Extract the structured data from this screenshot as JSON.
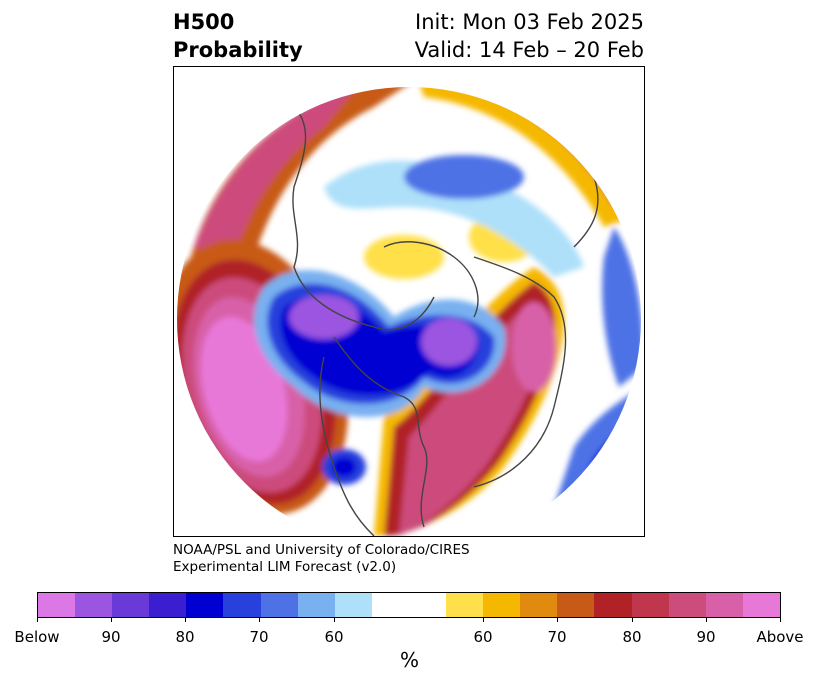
{
  "header": {
    "title_line1": "H500",
    "title_line2": "Probability",
    "init": "Init: Mon 03 Feb 2025",
    "valid": "Valid: 14 Feb – 20 Feb"
  },
  "credit": {
    "line1": "NOAA/PSL and University of Colorado/CIRES",
    "line2": "Experimental LIM Forecast (v2.0)"
  },
  "colorbar": {
    "unit": "%",
    "tick_labels": [
      "Below",
      "90",
      "80",
      "70",
      "60",
      "60",
      "70",
      "80",
      "90",
      "Above"
    ],
    "colors": {
      "below_100": "#dc78e6",
      "below_90": "#9b55e0",
      "below_85": "#6a3ad8",
      "below_80": "#3a1ed0",
      "below_75": "#0000d2",
      "below_70": "#2840dc",
      "below_65": "#4e72e6",
      "below_60": "#78b0f0",
      "below_55": "#aee0fa",
      "neutral": "#ffffff",
      "above_55": "#ffe04a",
      "above_60": "#f5b800",
      "above_65": "#e08a10",
      "above_70": "#c85a18",
      "above_75": "#b02226",
      "above_80": "#c0364c",
      "above_85": "#cc4c7c",
      "above_90": "#d860a8",
      "above_100": "#e878d8"
    }
  }
}
